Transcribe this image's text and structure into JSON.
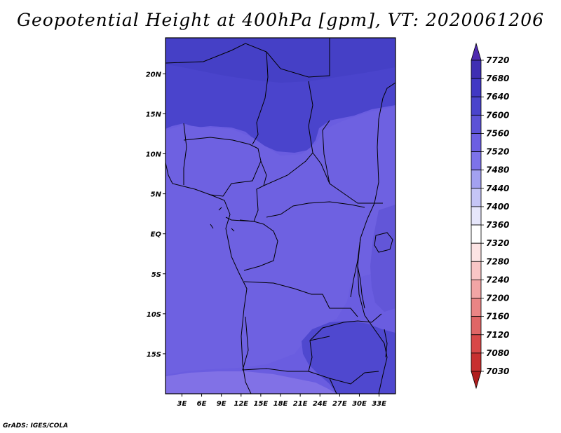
{
  "title": "Geopotential Height at 400hPa [gpm], VT: 2020061206",
  "credit": "GrADS: IGES/COLA",
  "chart_data": {
    "type": "heatmap",
    "variable": "Geopotential Height",
    "level": "400hPa",
    "units": "gpm",
    "valid_time": "2020061206",
    "lon_range": [
      0.5,
      35.5
    ],
    "lat_range": [
      -20,
      24.5
    ],
    "x_ticks": [
      "3E",
      "6E",
      "9E",
      "12E",
      "15E",
      "18E",
      "21E",
      "24E",
      "27E",
      "30E",
      "33E"
    ],
    "x_tick_values": [
      3,
      6,
      9,
      12,
      15,
      18,
      21,
      24,
      27,
      30,
      33
    ],
    "y_ticks": [
      "20N",
      "15N",
      "10N",
      "5N",
      "EQ",
      "5S",
      "10S",
      "15S"
    ],
    "y_tick_values": [
      20,
      15,
      10,
      5,
      0,
      -5,
      -10,
      -15
    ],
    "colorbar": {
      "labels": [
        "7720",
        "7680",
        "7640",
        "7600",
        "7560",
        "7520",
        "7480",
        "7440",
        "7400",
        "7360",
        "7320",
        "7280",
        "7240",
        "7200",
        "7160",
        "7120",
        "7080",
        "7030"
      ],
      "colors": [
        "#4f2aaf",
        "#3f2fb3",
        "#4138c4",
        "#4a44cc",
        "#5c52d6",
        "#6c5fe2",
        "#7d73ea",
        "#a3a1f0",
        "#c5c5f6",
        "#e6e6fb",
        "#ffffff",
        "#fde4e4",
        "#f9c6c6",
        "#f2a5a5",
        "#ea8585",
        "#e06666",
        "#d84848",
        "#c83030",
        "#b01e1e"
      ]
    },
    "field_colors": {
      "band_7640_7680": "#4540c6",
      "band_7600_7640": "#4f48cf",
      "band_7560_7600": "#6256d8",
      "band_7520_7560": "#7163e0",
      "band_7480_7520": "#8171e6"
    }
  }
}
